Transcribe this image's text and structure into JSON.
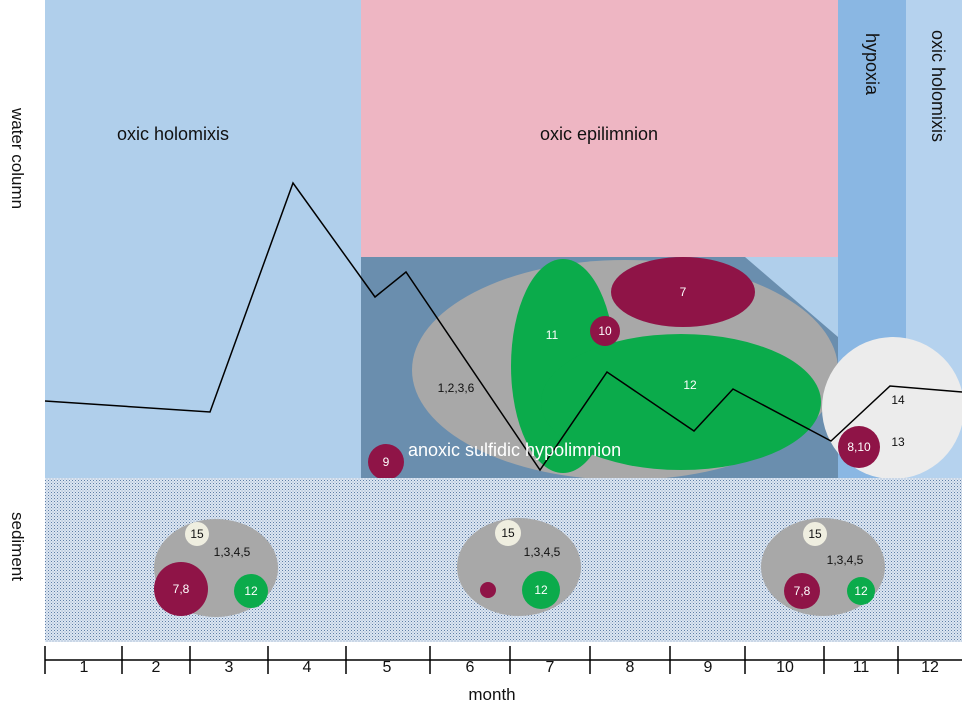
{
  "side_labels": {
    "water_column": "water column",
    "sediment": "sediment"
  },
  "zones": {
    "oxic_holomixis_left": "oxic holomixis",
    "oxic_epilimnion": "oxic epilimnion",
    "hypoxia": "hypoxia",
    "oxic_holomixis_right": "oxic holomixis",
    "anoxic_hypolimnion": "anoxic sulfidic hypolimnion"
  },
  "groups": {
    "water_1236": "1,2,3,6",
    "water_7": "7",
    "water_10": "10",
    "water_11": "11",
    "water_12": "12",
    "water_9": "9",
    "water_14": "14",
    "water_13": "13",
    "water_8_10": "8,10"
  },
  "sediment_clusters": [
    {
      "a": "15",
      "b": "1,3,4,5",
      "c": "7,8",
      "d": "12"
    },
    {
      "a": "15",
      "b": "1,3,4,5",
      "c": "",
      "d": "12"
    },
    {
      "a": "15",
      "b": "1,3,4,5",
      "c": "7,8",
      "d": "12"
    }
  ],
  "months": [
    "1",
    "2",
    "3",
    "4",
    "5",
    "6",
    "7",
    "8",
    "9",
    "10",
    "11",
    "12"
  ],
  "axis_title": "month",
  "colors": {
    "oxic_blue": "#b0cfeb",
    "epilimnion_pink": "#eeb6c3",
    "hypoxia_blue": "#8ab7e3",
    "hypolimnion_steel": "#6a8eae",
    "grey_cluster": "#a8a8a8",
    "green": "#0bab4b",
    "maroon": "#8f1447",
    "cream": "#efeee0",
    "light_grey": "#ececec"
  }
}
